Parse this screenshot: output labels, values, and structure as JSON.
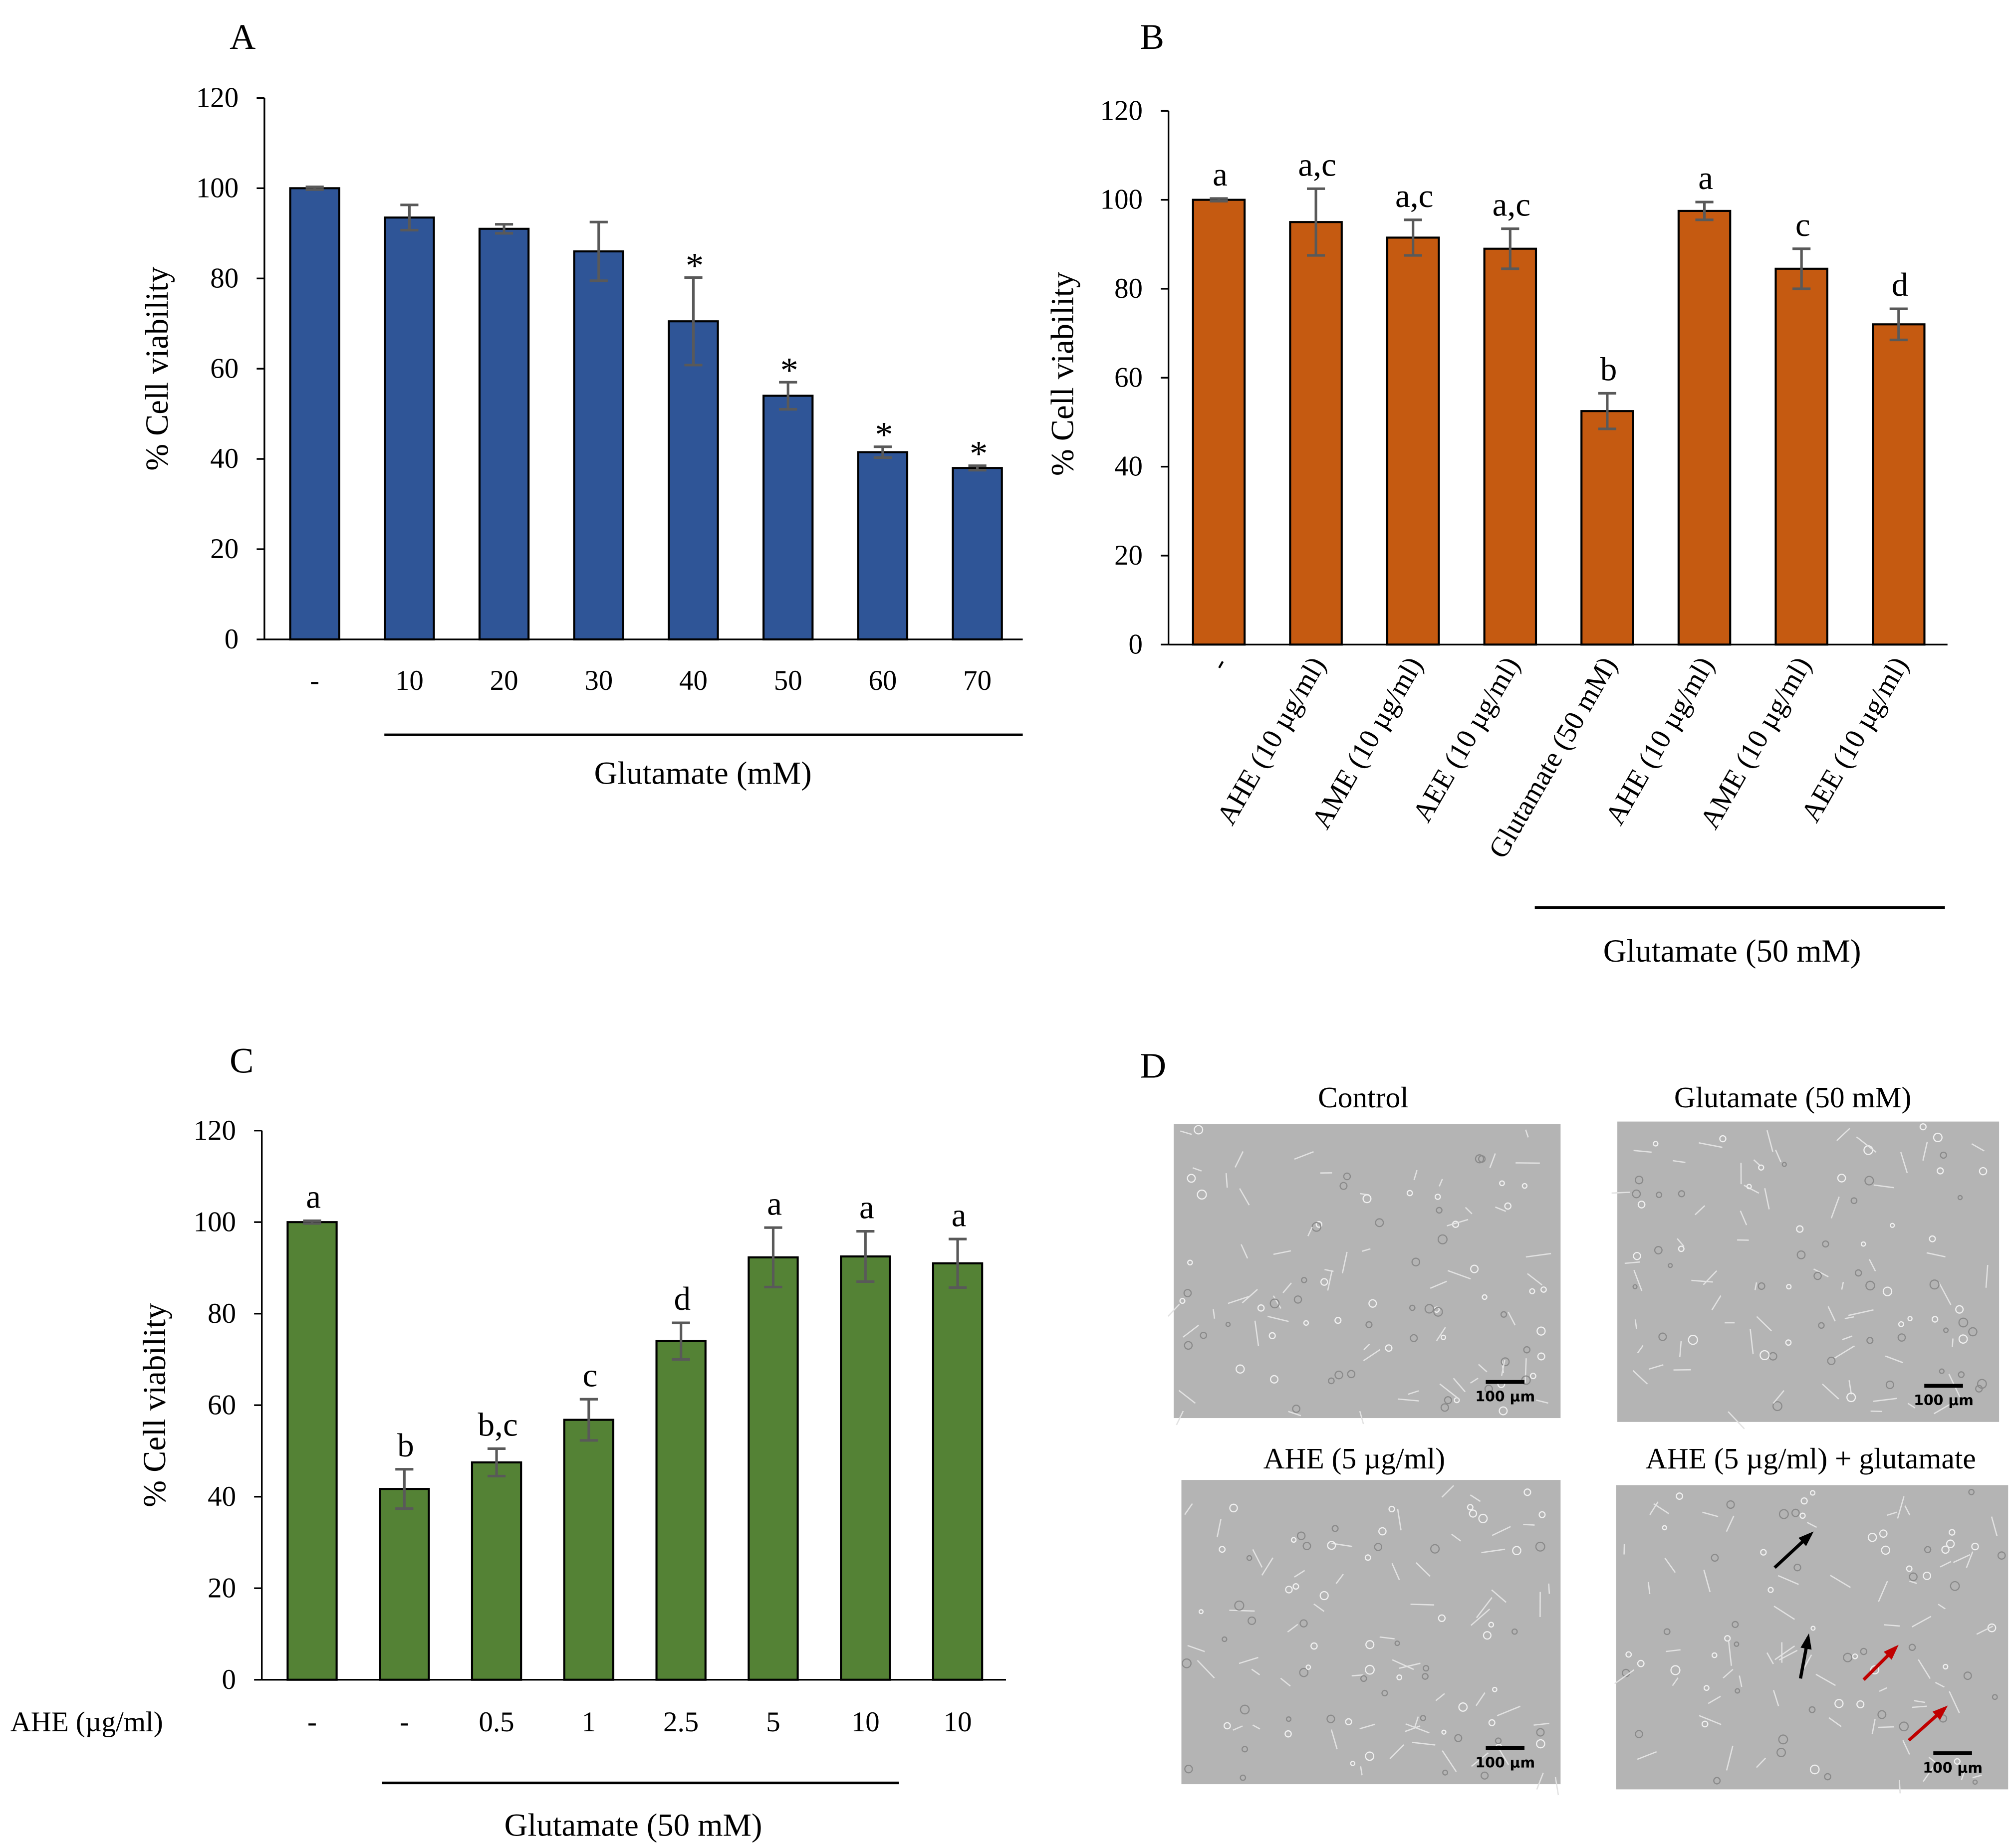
{
  "chart_data": [
    {
      "panel": "A",
      "type": "bar",
      "ylabel": "% Cell viability",
      "ylim": [
        0,
        120
      ],
      "yticks": [
        0,
        20,
        40,
        60,
        80,
        100,
        120
      ],
      "categories": [
        "-",
        "10",
        "20",
        "30",
        "40",
        "50",
        "60",
        "70"
      ],
      "values": [
        100,
        93.5,
        91,
        86,
        70.5,
        54,
        41.5,
        38
      ],
      "errors": [
        0.3,
        2.8,
        1,
        6.5,
        9.7,
        3,
        1.2,
        0.5
      ],
      "annotations": [
        "",
        "",
        "",
        "",
        "*",
        "*",
        "*",
        "*"
      ],
      "group_label": "Glutamate (mM)",
      "color": "#2f5597"
    },
    {
      "panel": "B",
      "type": "bar",
      "ylabel": "% Cell viability",
      "ylim": [
        0,
        120
      ],
      "yticks": [
        0,
        20,
        40,
        60,
        80,
        100,
        120
      ],
      "categories": [
        "-",
        "AHE (10 µg/ml)",
        "AME (10 µg/ml)",
        "AEE (10 µg/ml)",
        "Glutamate (50 mM)",
        "AHE (10 µg/ml)",
        "AME (10 µg/ml)",
        "AEE (10 µg/ml)"
      ],
      "values": [
        100,
        95,
        91.5,
        89,
        52.5,
        97.5,
        84.5,
        72
      ],
      "errors": [
        0.3,
        7.5,
        4,
        4.5,
        4,
        2,
        4.5,
        3.5
      ],
      "annotations": [
        "a",
        "a,c",
        "a,c",
        "a,c",
        "b",
        "a",
        "c",
        "d"
      ],
      "group_label": "Glutamate (50 mM)",
      "color": "#c55a11"
    },
    {
      "panel": "C",
      "type": "bar",
      "ylabel": "% Cell viability",
      "ylim": [
        0,
        120
      ],
      "yticks": [
        0,
        20,
        40,
        60,
        80,
        100,
        120
      ],
      "row_label": "AHE (µg/ml)",
      "categories": [
        "-",
        "-",
        "0.5",
        "1",
        "2.5",
        "5",
        "10",
        "10"
      ],
      "values": [
        100,
        41.7,
        47.5,
        56.8,
        74,
        92.3,
        92.5,
        91
      ],
      "errors": [
        0.3,
        4.3,
        3,
        4.5,
        4,
        6.5,
        5.5,
        5.3
      ],
      "annotations": [
        "a",
        "b",
        "b,c",
        "c",
        "d",
        "a",
        "a",
        "a"
      ],
      "group_label": "Glutamate (50 mM)",
      "color": "#548235"
    }
  ],
  "panel_d": {
    "letter": "D",
    "images": [
      {
        "title": "Control",
        "scale": "100 µm"
      },
      {
        "title": "Glutamate (50 mM)",
        "scale": "100 µm"
      },
      {
        "title": "AHE (5 µg/ml)",
        "scale": "100 µm"
      },
      {
        "title": "AHE (5 µg/ml) + glutamate",
        "scale": "100 µm"
      }
    ]
  },
  "arrow_colors": {
    "black": "#000000",
    "red": "#c00000"
  }
}
